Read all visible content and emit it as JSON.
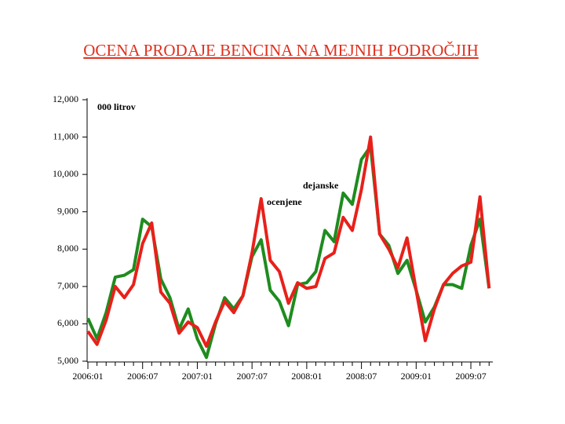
{
  "chart_data": {
    "type": "line",
    "title": "OCENA PRODAJE BENCINA NA MEJNIH PODROČJIH",
    "annotations": [
      "000 litrov",
      "dejanske",
      "ocenjene"
    ],
    "categories": [
      "2006:01",
      null,
      null,
      null,
      null,
      null,
      "2006:07",
      null,
      null,
      null,
      null,
      null,
      "2007:01",
      null,
      null,
      null,
      null,
      null,
      "2007:07",
      null,
      null,
      null,
      null,
      null,
      "2008:01",
      null,
      null,
      null,
      null,
      null,
      "2008:07",
      null,
      null,
      null,
      null,
      null,
      "2009:01",
      null,
      null,
      null,
      null,
      null,
      "2009:07",
      null,
      null
    ],
    "series": [
      {
        "name": "dejanske",
        "color": "#1e8c1e",
        "values": [
          6150,
          5600,
          6300,
          7250,
          7300,
          7450,
          8800,
          8600,
          7200,
          6700,
          5850,
          6400,
          5600,
          5100,
          6000,
          6700,
          6400,
          6750,
          7800,
          8250,
          6900,
          6600,
          5950,
          7050,
          7100,
          7400,
          8500,
          8200,
          9500,
          9200,
          10400,
          10750,
          8400,
          8100,
          7350,
          7700,
          6900,
          6050,
          6450,
          7050,
          7050,
          6950,
          8100,
          8800,
          6950
        ]
      },
      {
        "name": "ocenjene",
        "color": "#e8201a",
        "values": [
          5800,
          5450,
          6100,
          7000,
          6700,
          7050,
          8150,
          8700,
          6850,
          6550,
          5750,
          6050,
          5900,
          5400,
          6050,
          6600,
          6300,
          6750,
          7900,
          9350,
          7700,
          7400,
          6550,
          7100,
          6950,
          7000,
          7750,
          7900,
          8850,
          8500,
          9600,
          11000,
          8400,
          8000,
          7500,
          8300,
          6900,
          5550,
          6400,
          7050,
          7350,
          7550,
          7650,
          9400,
          6950
        ]
      }
    ],
    "ylim": [
      5000,
      12000
    ],
    "yticks": [
      {
        "value": 5000,
        "label": "5,000"
      },
      {
        "value": 6000,
        "label": "6,000"
      },
      {
        "value": 7000,
        "label": "7,000"
      },
      {
        "value": 8000,
        "label": "8,000"
      },
      {
        "value": 9000,
        "label": "9,000"
      },
      {
        "value": 10000,
        "label": "10,000"
      },
      {
        "value": 11000,
        "label": "11,000"
      },
      {
        "value": 12000,
        "label": "12,000"
      }
    ],
    "grid": false
  }
}
